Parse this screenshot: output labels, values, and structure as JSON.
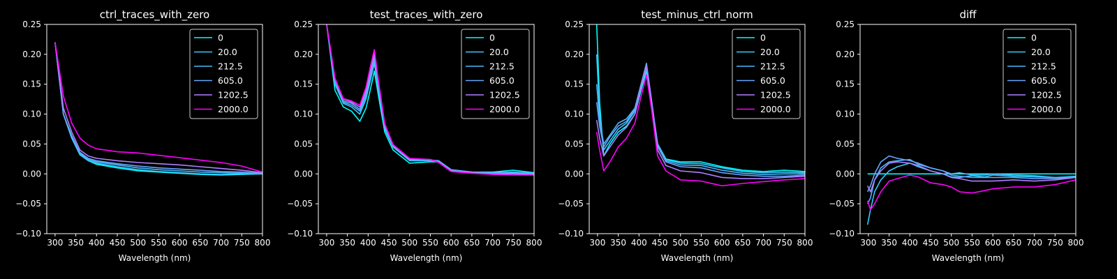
{
  "figure": {
    "background": "#000000",
    "foreground": "#ffffff"
  },
  "legend_labels": [
    "0",
    "20.0",
    "212.5",
    "605.0",
    "1202.5",
    "2000.0"
  ],
  "series_colors": [
    "#00ffff",
    "#33ccff",
    "#4ab8ff",
    "#66a6ff",
    "#b080ff",
    "#ff00ff"
  ],
  "chart_data": [
    {
      "type": "line",
      "title": "ctrl_traces_with_zero",
      "xlabel": "Wavelength (nm)",
      "ylabel": "",
      "xlim": [
        280,
        800
      ],
      "ylim": [
        -0.1,
        0.25
      ],
      "xticks": [
        300,
        350,
        400,
        450,
        500,
        550,
        600,
        650,
        700,
        750,
        800
      ],
      "yticks": [
        -0.1,
        -0.05,
        0.0,
        0.05,
        0.1,
        0.15,
        0.2,
        0.25
      ],
      "ytick_labels": [
        "−0.10",
        "−0.05",
        "0.00",
        "0.05",
        "0.10",
        "0.15",
        "0.20",
        "0.25"
      ],
      "legend": "top-right",
      "grid": false,
      "x": [
        300,
        320,
        340,
        360,
        380,
        400,
        450,
        500,
        550,
        600,
        650,
        700,
        750,
        800
      ],
      "series": [
        {
          "name": "0",
          "values": [
            0.22,
            0.1,
            0.06,
            0.032,
            0.022,
            0.016,
            0.01,
            0.005,
            0.003,
            0.001,
            -0.001,
            -0.002,
            -0.001,
            0.0
          ]
        },
        {
          "name": "20.0",
          "values": [
            0.22,
            0.1,
            0.06,
            0.032,
            0.022,
            0.018,
            0.012,
            0.007,
            0.004,
            0.002,
            0.0,
            -0.001,
            0.0,
            0.0
          ]
        },
        {
          "name": "212.5",
          "values": [
            0.22,
            0.1,
            0.062,
            0.034,
            0.024,
            0.02,
            0.015,
            0.01,
            0.007,
            0.005,
            0.003,
            0.002,
            0.001,
            0.0
          ]
        },
        {
          "name": "605.0",
          "values": [
            0.22,
            0.1,
            0.064,
            0.036,
            0.026,
            0.022,
            0.017,
            0.013,
            0.01,
            0.008,
            0.006,
            0.004,
            0.003,
            0.001
          ]
        },
        {
          "name": "1202.5",
          "values": [
            0.22,
            0.11,
            0.07,
            0.04,
            0.03,
            0.026,
            0.022,
            0.019,
            0.017,
            0.015,
            0.012,
            0.009,
            0.006,
            0.002
          ]
        },
        {
          "name": "2000.0",
          "values": [
            0.22,
            0.13,
            0.085,
            0.06,
            0.048,
            0.042,
            0.037,
            0.035,
            0.031,
            0.027,
            0.023,
            0.019,
            0.013,
            0.003
          ]
        }
      ]
    },
    {
      "type": "line",
      "title": "test_traces_with_zero",
      "xlabel": "Wavelength (nm)",
      "ylabel": "",
      "xlim": [
        280,
        800
      ],
      "ylim": [
        -0.1,
        0.25
      ],
      "xticks": [
        300,
        350,
        400,
        450,
        500,
        550,
        600,
        650,
        700,
        750,
        800
      ],
      "yticks": [
        -0.1,
        -0.05,
        0.0,
        0.05,
        0.1,
        0.15,
        0.2,
        0.25
      ],
      "ytick_labels": [
        "−0.10",
        "−0.05",
        "0.00",
        "0.05",
        "0.10",
        "0.15",
        "0.20",
        "0.25"
      ],
      "legend": "top-right",
      "grid": false,
      "x": [
        300,
        320,
        340,
        360,
        380,
        395,
        405,
        415,
        425,
        440,
        460,
        500,
        550,
        570,
        600,
        650,
        700,
        750,
        800
      ],
      "series": [
        {
          "name": "0",
          "values": [
            0.25,
            0.14,
            0.112,
            0.105,
            0.088,
            0.11,
            0.14,
            0.172,
            0.13,
            0.07,
            0.04,
            0.018,
            0.02,
            0.02,
            0.006,
            0.003,
            0.003,
            0.006,
            0.002
          ]
        },
        {
          "name": "20.0",
          "values": [
            0.25,
            0.15,
            0.118,
            0.112,
            0.1,
            0.125,
            0.155,
            0.185,
            0.14,
            0.075,
            0.045,
            0.022,
            0.022,
            0.022,
            0.007,
            0.003,
            0.002,
            0.003,
            0.001
          ]
        },
        {
          "name": "212.5",
          "values": [
            0.25,
            0.15,
            0.12,
            0.115,
            0.105,
            0.13,
            0.16,
            0.19,
            0.145,
            0.078,
            0.046,
            0.023,
            0.023,
            0.022,
            0.007,
            0.003,
            0.002,
            0.002,
            0.001
          ]
        },
        {
          "name": "605.0",
          "values": [
            0.25,
            0.155,
            0.122,
            0.118,
            0.108,
            0.135,
            0.165,
            0.195,
            0.148,
            0.08,
            0.047,
            0.024,
            0.023,
            0.021,
            0.006,
            0.003,
            0.001,
            0.001,
            0.0
          ]
        },
        {
          "name": "1202.5",
          "values": [
            0.25,
            0.16,
            0.125,
            0.12,
            0.112,
            0.14,
            0.172,
            0.202,
            0.152,
            0.082,
            0.048,
            0.025,
            0.024,
            0.02,
            0.005,
            0.002,
            0.0,
            0.0,
            -0.001
          ]
        },
        {
          "name": "2000.0",
          "values": [
            0.25,
            0.16,
            0.126,
            0.122,
            0.115,
            0.145,
            0.178,
            0.208,
            0.155,
            0.084,
            0.049,
            0.026,
            0.024,
            0.019,
            0.004,
            0.001,
            -0.001,
            -0.002,
            -0.002
          ]
        }
      ]
    },
    {
      "type": "line",
      "title": "test_minus_ctrl_norm",
      "xlabel": "Wavelength (nm)",
      "ylabel": "",
      "xlim": [
        280,
        800
      ],
      "ylim": [
        -0.1,
        0.25
      ],
      "xticks": [
        300,
        350,
        400,
        450,
        500,
        550,
        600,
        650,
        700,
        750,
        800
      ],
      "yticks": [
        -0.1,
        -0.05,
        0.0,
        0.05,
        0.1,
        0.15,
        0.2,
        0.25
      ],
      "ytick_labels": [
        "−0.10",
        "−0.05",
        "0.00",
        "0.05",
        "0.10",
        "0.15",
        "0.20",
        "0.25"
      ],
      "legend": "top-right",
      "grid": false,
      "x": [
        298,
        305,
        315,
        330,
        350,
        370,
        390,
        405,
        418,
        430,
        445,
        465,
        500,
        550,
        600,
        650,
        700,
        750,
        800
      ],
      "series": [
        {
          "name": "0",
          "values": [
            0.25,
            0.12,
            0.03,
            0.05,
            0.07,
            0.08,
            0.1,
            0.14,
            0.172,
            0.12,
            0.05,
            0.025,
            0.02,
            0.02,
            0.012,
            0.006,
            0.004,
            0.006,
            0.004
          ]
        },
        {
          "name": "20.0",
          "values": [
            0.2,
            0.1,
            0.04,
            0.055,
            0.075,
            0.085,
            0.105,
            0.145,
            0.178,
            0.122,
            0.05,
            0.024,
            0.018,
            0.017,
            0.01,
            0.004,
            0.002,
            0.003,
            0.002
          ]
        },
        {
          "name": "212.5",
          "values": [
            0.15,
            0.09,
            0.05,
            0.065,
            0.085,
            0.092,
            0.11,
            0.15,
            0.182,
            0.124,
            0.048,
            0.022,
            0.015,
            0.014,
            0.006,
            0.001,
            -0.001,
            0.0,
            0.0
          ]
        },
        {
          "name": "605.0",
          "values": [
            0.12,
            0.08,
            0.045,
            0.062,
            0.08,
            0.088,
            0.108,
            0.15,
            0.185,
            0.125,
            0.046,
            0.02,
            0.012,
            0.01,
            0.002,
            -0.002,
            -0.004,
            -0.004,
            -0.002
          ]
        },
        {
          "name": "1202.5",
          "values": [
            0.09,
            0.06,
            0.03,
            0.045,
            0.065,
            0.078,
            0.1,
            0.145,
            0.18,
            0.12,
            0.04,
            0.014,
            0.005,
            0.002,
            -0.006,
            -0.008,
            -0.008,
            -0.006,
            -0.004
          ]
        },
        {
          "name": "2000.0",
          "values": [
            0.07,
            0.04,
            0.005,
            0.02,
            0.045,
            0.06,
            0.085,
            0.13,
            0.165,
            0.11,
            0.03,
            0.005,
            -0.01,
            -0.012,
            -0.02,
            -0.016,
            -0.013,
            -0.01,
            -0.008
          ]
        }
      ]
    },
    {
      "type": "line",
      "title": "diff",
      "xlabel": "Wavelength (nm)",
      "ylabel": "",
      "xlim": [
        280,
        800
      ],
      "ylim": [
        -0.1,
        0.25
      ],
      "xticks": [
        300,
        350,
        400,
        450,
        500,
        550,
        600,
        650,
        700,
        750,
        800
      ],
      "yticks": [
        -0.1,
        -0.05,
        0.0,
        0.05,
        0.1,
        0.15,
        0.2,
        0.25
      ],
      "ytick_labels": [
        "−0.10",
        "−0.05",
        "0.00",
        "0.05",
        "0.10",
        "0.15",
        "0.20",
        "0.25"
      ],
      "legend": "top-right",
      "grid": false,
      "x": [
        298,
        305,
        315,
        330,
        350,
        370,
        400,
        420,
        450,
        480,
        500,
        520,
        550,
        580,
        600,
        650,
        700,
        750,
        800
      ],
      "series": [
        {
          "name": "0",
          "values": [
            0.0,
            0.0,
            0.0,
            0.0,
            0.0,
            0.0,
            0.0,
            0.0,
            0.0,
            0.0,
            0.0,
            0.0,
            0.0,
            0.0,
            0.0,
            0.0,
            0.0,
            0.0,
            0.0
          ]
        },
        {
          "name": "20.0",
          "values": [
            -0.085,
            -0.06,
            -0.03,
            -0.01,
            0.005,
            0.012,
            0.018,
            0.012,
            0.005,
            0.0,
            -0.005,
            -0.006,
            -0.003,
            -0.005,
            -0.002,
            -0.004,
            -0.005,
            -0.006,
            -0.004
          ]
        },
        {
          "name": "212.5",
          "values": [
            -0.05,
            -0.04,
            -0.01,
            0.01,
            0.02,
            0.022,
            0.024,
            0.016,
            0.01,
            0.005,
            0.0,
            0.002,
            -0.002,
            -0.002,
            0.0,
            -0.002,
            -0.003,
            -0.006,
            -0.005
          ]
        },
        {
          "name": "605.0",
          "values": [
            -0.03,
            -0.02,
            0.0,
            0.02,
            0.03,
            0.026,
            0.022,
            0.018,
            0.01,
            0.005,
            -0.002,
            -0.004,
            -0.006,
            -0.006,
            -0.006,
            -0.006,
            -0.008,
            -0.008,
            -0.006
          ]
        },
        {
          "name": "1202.5",
          "values": [
            -0.02,
            -0.03,
            -0.01,
            0.005,
            0.018,
            0.02,
            0.018,
            0.014,
            0.005,
            0.0,
            -0.006,
            -0.008,
            -0.012,
            -0.012,
            -0.012,
            -0.01,
            -0.012,
            -0.01,
            -0.006
          ]
        },
        {
          "name": "2000.0",
          "values": [
            -0.045,
            -0.06,
            -0.05,
            -0.03,
            -0.012,
            -0.008,
            -0.002,
            -0.005,
            -0.015,
            -0.018,
            -0.022,
            -0.03,
            -0.032,
            -0.028,
            -0.025,
            -0.022,
            -0.022,
            -0.018,
            -0.01
          ]
        }
      ]
    }
  ]
}
